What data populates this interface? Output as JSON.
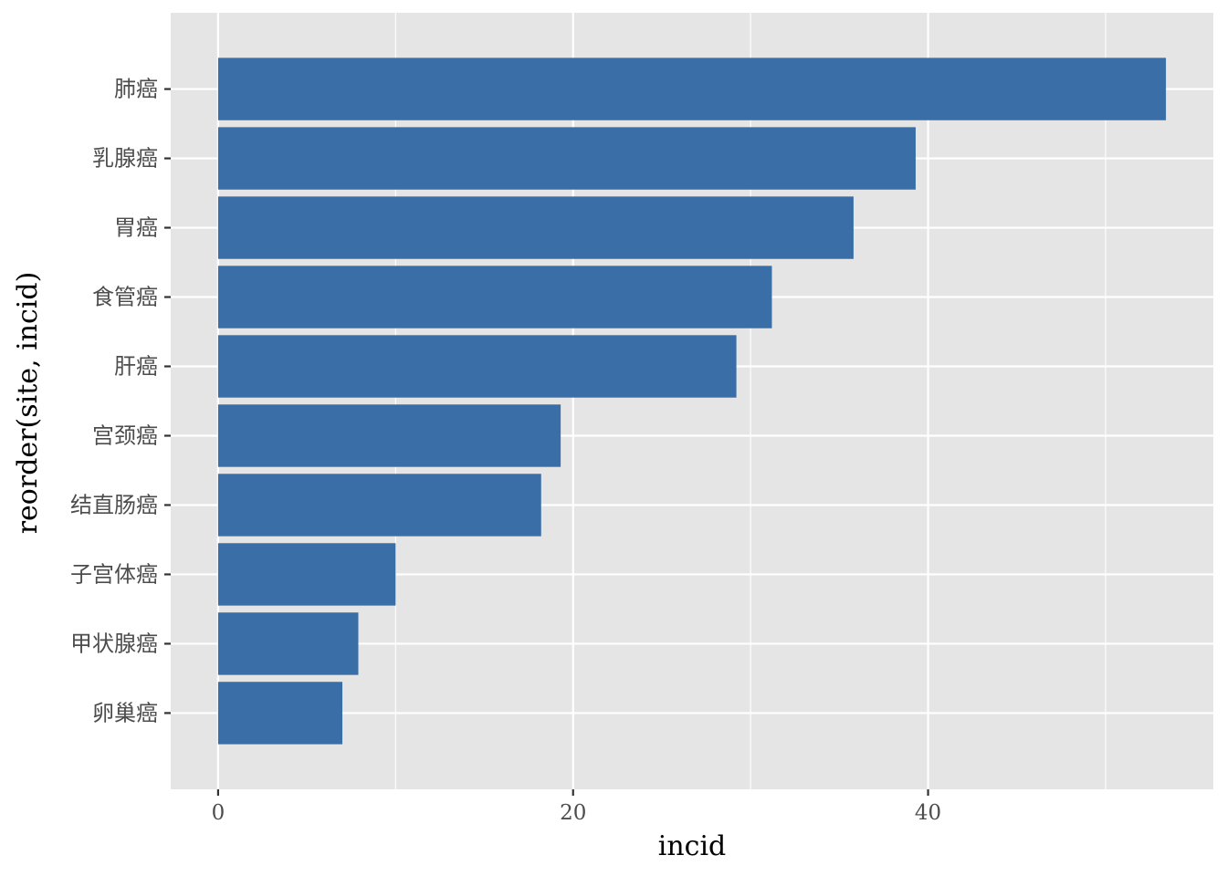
{
  "chart_data": {
    "type": "bar",
    "orientation": "horizontal",
    "categories": [
      "肺癌",
      "乳腺癌",
      "胃癌",
      "食管癌",
      "肝癌",
      "宫颈癌",
      "结直肠癌",
      "子宫体癌",
      "甲状腺癌",
      "卵巢癌"
    ],
    "values": [
      53.4,
      39.3,
      35.8,
      31.2,
      29.2,
      19.3,
      18.2,
      10.0,
      7.9,
      7.0
    ],
    "xlabel": "incid",
    "ylabel": "reorder(site, incid)",
    "xlim": [
      -2.67,
      56.07
    ],
    "xticks": [
      0,
      20,
      40
    ],
    "xtick_labels": [
      "0",
      "20",
      "40"
    ],
    "grid": true,
    "legend": "none",
    "colors": {
      "bar": "#396ea6",
      "panel_background": "#e5e5e5",
      "grid": "#ffffff",
      "tick_label": "#4d4d4d",
      "axis_title": "#000000"
    }
  }
}
